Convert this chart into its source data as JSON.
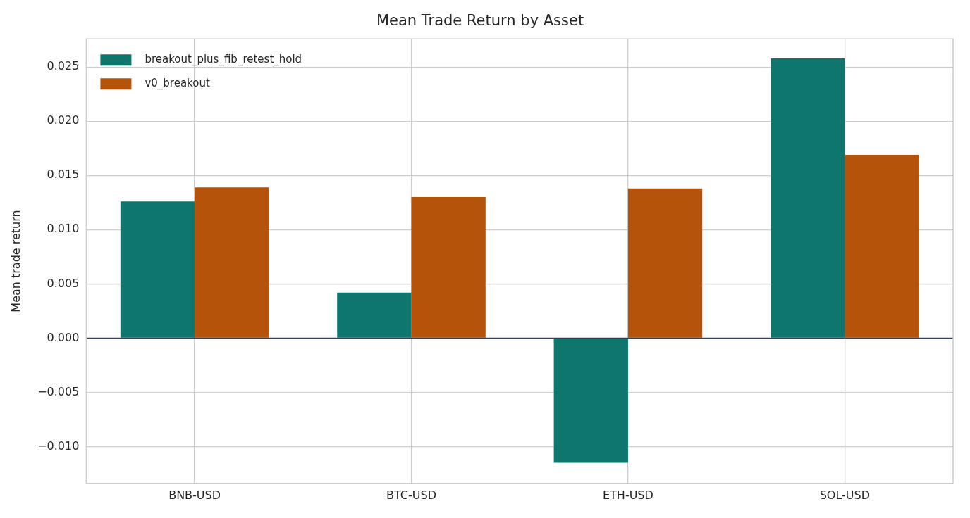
{
  "chart_data": {
    "type": "bar",
    "title": "Mean Trade Return by Asset",
    "ylabel": "Mean trade return",
    "categories": [
      "BNB-USD",
      "BTC-USD",
      "ETH-USD",
      "SOL-USD"
    ],
    "series": [
      {
        "name": "breakout_plus_fib_retest_hold",
        "color": "#0f766e",
        "values": [
          0.0126,
          0.0042,
          -0.0115,
          0.0258
        ]
      },
      {
        "name": "v0_breakout",
        "color": "#b45309",
        "values": [
          0.0139,
          0.013,
          0.0138,
          0.0169
        ]
      }
    ],
    "ylim": [
      -0.0134,
      0.0276
    ],
    "yticks": [
      {
        "value": -0.01,
        "label": "−0.010"
      },
      {
        "value": -0.005,
        "label": "−0.005"
      },
      {
        "value": 0,
        "label": "0.000"
      },
      0.005,
      {
        "value": 0.01,
        "label": "0.010"
      },
      0.015,
      {
        "value": 0.02,
        "label": "0.020"
      },
      0.025
    ],
    "ref_lines": [
      {
        "axis": "y",
        "value": 0,
        "color": "#334155"
      }
    ],
    "grid": true,
    "legend": "top left"
  }
}
